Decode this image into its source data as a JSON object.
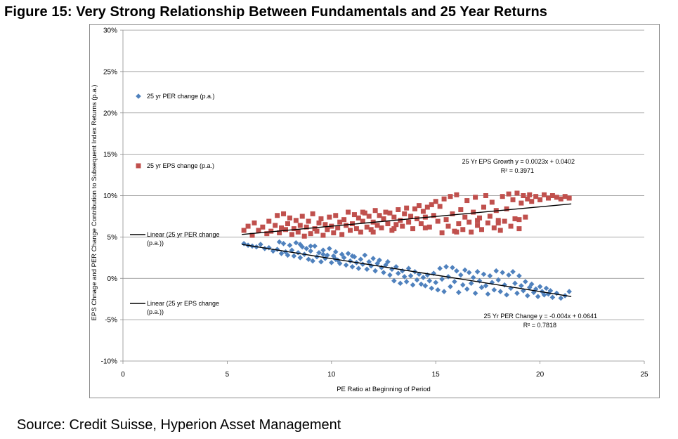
{
  "title": "Figure 15: Very Strong Relationship Between Fundamentals and 25 Year Returns",
  "source": "Source: Credit Suisse, Hyperion Asset Management",
  "chart_data": {
    "type": "scatter",
    "title": "",
    "xlabel": "PE Ratio  at Beginning of Period",
    "ylabel": "EPS Chnage and PER Change Contribution to Subsequent Index Returns (p.a.)",
    "xlim": [
      0,
      25
    ],
    "ylim": [
      -10,
      30
    ],
    "x_ticks": [
      0,
      5,
      10,
      15,
      20,
      25
    ],
    "y_ticks": [
      -10,
      -5,
      0,
      5,
      10,
      15,
      20,
      25,
      30
    ],
    "y_tick_labels": [
      "-10%",
      "-5%",
      "0%",
      "5%",
      "10%",
      "15%",
      "20%",
      "25%",
      "30%"
    ],
    "grid": "horizontal",
    "legend_placement": "left",
    "legend": [
      {
        "label": "25 yr PER change (p.a.)",
        "marker": "diamond",
        "color": "#4f81bd"
      },
      {
        "label": "25 yr EPS change (p.a.)",
        "marker": "square",
        "color": "#c0504d"
      },
      {
        "label": "Linear (25 yr PER change",
        "label2": "(p.a.))",
        "marker": "line",
        "color": "#000000"
      },
      {
        "label": "Linear (25 yr EPS change",
        "label2": "(p.a.))",
        "marker": "line",
        "color": "#000000"
      }
    ],
    "series": [
      {
        "name": "25 yr PER change (p.a.)",
        "marker": "diamond",
        "color": "#4f81bd",
        "points": [
          [
            5.8,
            4.2
          ],
          [
            6.0,
            4.0
          ],
          [
            6.2,
            3.9
          ],
          [
            6.4,
            3.8
          ],
          [
            6.6,
            4.1
          ],
          [
            6.8,
            3.6
          ],
          [
            7.0,
            3.7
          ],
          [
            7.2,
            3.3
          ],
          [
            7.4,
            3.5
          ],
          [
            7.5,
            4.4
          ],
          [
            7.6,
            3.0
          ],
          [
            7.7,
            4.2
          ],
          [
            7.8,
            3.2
          ],
          [
            7.9,
            2.8
          ],
          [
            8.0,
            4.0
          ],
          [
            8.1,
            3.4
          ],
          [
            8.2,
            2.7
          ],
          [
            8.3,
            4.3
          ],
          [
            8.4,
            3.1
          ],
          [
            8.5,
            2.5
          ],
          [
            8.6,
            3.8
          ],
          [
            8.7,
            2.9
          ],
          [
            8.8,
            3.6
          ],
          [
            8.9,
            2.3
          ],
          [
            9.0,
            3.3
          ],
          [
            9.1,
            2.1
          ],
          [
            9.2,
            3.9
          ],
          [
            9.3,
            2.6
          ],
          [
            9.4,
            3.1
          ],
          [
            9.5,
            2.0
          ],
          [
            9.6,
            3.4
          ],
          [
            9.7,
            2.4
          ],
          [
            9.8,
            2.8
          ],
          [
            9.9,
            3.6
          ],
          [
            10.0,
            1.9
          ],
          [
            10.1,
            2.7
          ],
          [
            10.2,
            3.2
          ],
          [
            10.3,
            2.2
          ],
          [
            10.4,
            1.8
          ],
          [
            10.5,
            2.9
          ],
          [
            10.6,
            2.5
          ],
          [
            10.7,
            1.6
          ],
          [
            10.8,
            3.0
          ],
          [
            10.9,
            2.1
          ],
          [
            11.0,
            1.4
          ],
          [
            11.1,
            2.6
          ],
          [
            11.2,
            1.9
          ],
          [
            11.3,
            1.2
          ],
          [
            11.4,
            2.3
          ],
          [
            11.5,
            1.7
          ],
          [
            11.6,
            2.8
          ],
          [
            11.7,
            1.1
          ],
          [
            11.8,
            2.0
          ],
          [
            11.9,
            1.5
          ],
          [
            12.0,
            2.4
          ],
          [
            12.1,
            0.9
          ],
          [
            12.2,
            1.8
          ],
          [
            12.3,
            2.2
          ],
          [
            12.4,
            1.3
          ],
          [
            12.5,
            0.7
          ],
          [
            12.6,
            1.6
          ],
          [
            12.7,
            2.0
          ],
          [
            12.8,
            0.4
          ],
          [
            12.9,
            1.1
          ],
          [
            13.0,
            -0.3
          ],
          [
            13.1,
            1.4
          ],
          [
            13.2,
            0.6
          ],
          [
            13.3,
            -0.6
          ],
          [
            13.4,
            0.9
          ],
          [
            13.5,
            0.2
          ],
          [
            13.6,
            -0.4
          ],
          [
            13.7,
            1.2
          ],
          [
            13.8,
            0.3
          ],
          [
            13.9,
            -0.8
          ],
          [
            14.0,
            0.8
          ],
          [
            14.1,
            -0.2
          ],
          [
            14.2,
            0.5
          ],
          [
            14.3,
            -0.7
          ],
          [
            14.4,
            0.1
          ],
          [
            14.5,
            -0.9
          ],
          [
            14.6,
            0.4
          ],
          [
            14.7,
            -0.3
          ],
          [
            14.8,
            -1.2
          ],
          [
            14.9,
            0.6
          ],
          [
            15.0,
            -0.5
          ],
          [
            15.1,
            -1.4
          ],
          [
            15.2,
            1.2
          ],
          [
            15.3,
            -0.1
          ],
          [
            15.4,
            -1.6
          ],
          [
            15.5,
            1.4
          ],
          [
            15.6,
            0.2
          ],
          [
            15.7,
            -1.0
          ],
          [
            15.8,
            1.3
          ],
          [
            15.9,
            -0.4
          ],
          [
            16.0,
            0.9
          ],
          [
            16.1,
            -1.7
          ],
          [
            16.2,
            0.4
          ],
          [
            16.3,
            -0.8
          ],
          [
            16.4,
            1.0
          ],
          [
            16.5,
            -1.3
          ],
          [
            16.6,
            0.7
          ],
          [
            16.7,
            -0.6
          ],
          [
            16.8,
            0.1
          ],
          [
            16.9,
            -1.8
          ],
          [
            17.0,
            0.8
          ],
          [
            17.1,
            -0.3
          ],
          [
            17.2,
            -1.1
          ],
          [
            17.3,
            0.5
          ],
          [
            17.4,
            -0.9
          ],
          [
            17.5,
            -1.9
          ],
          [
            17.6,
            0.3
          ],
          [
            17.7,
            -0.5
          ],
          [
            17.8,
            -1.4
          ],
          [
            17.9,
            0.9
          ],
          [
            18.0,
            -0.2
          ],
          [
            18.1,
            -1.6
          ],
          [
            18.2,
            0.7
          ],
          [
            18.3,
            -0.8
          ],
          [
            18.4,
            -2.0
          ],
          [
            18.5,
            0.4
          ],
          [
            18.6,
            -1.2
          ],
          [
            18.7,
            0.8
          ],
          [
            18.8,
            -0.6
          ],
          [
            18.9,
            -1.8
          ],
          [
            19.0,
            0.3
          ],
          [
            19.1,
            -0.9
          ],
          [
            19.2,
            -1.5
          ],
          [
            19.3,
            -0.4
          ],
          [
            19.4,
            -2.1
          ],
          [
            19.5,
            -1.1
          ],
          [
            19.6,
            -0.7
          ],
          [
            19.7,
            -1.7
          ],
          [
            19.8,
            -1.3
          ],
          [
            19.9,
            -2.2
          ],
          [
            20.0,
            -1.0
          ],
          [
            20.1,
            -1.6
          ],
          [
            20.2,
            -2.0
          ],
          [
            20.3,
            -1.2
          ],
          [
            20.4,
            -1.9
          ],
          [
            20.5,
            -1.5
          ],
          [
            20.6,
            -2.3
          ],
          [
            20.8,
            -1.8
          ],
          [
            21.0,
            -2.4
          ],
          [
            21.2,
            -2.1
          ],
          [
            21.4,
            -1.6
          ],
          [
            8.5,
            4.1
          ],
          [
            9.0,
            3.9
          ],
          [
            9.6,
            2.9
          ],
          [
            10.2,
            2.3
          ],
          [
            11.0,
            2.7
          ]
        ]
      },
      {
        "name": "25 yr EPS change (p.a.)",
        "marker": "square",
        "color": "#c0504d",
        "points": [
          [
            5.8,
            5.8
          ],
          [
            6.0,
            6.3
          ],
          [
            6.2,
            5.2
          ],
          [
            6.3,
            6.7
          ],
          [
            6.5,
            5.8
          ],
          [
            6.7,
            6.2
          ],
          [
            6.9,
            5.4
          ],
          [
            7.0,
            6.9
          ],
          [
            7.1,
            5.7
          ],
          [
            7.3,
            6.4
          ],
          [
            7.4,
            7.6
          ],
          [
            7.5,
            5.5
          ],
          [
            7.6,
            6.1
          ],
          [
            7.7,
            7.8
          ],
          [
            7.8,
            5.9
          ],
          [
            7.9,
            6.6
          ],
          [
            8.0,
            7.3
          ],
          [
            8.1,
            5.3
          ],
          [
            8.2,
            6.0
          ],
          [
            8.3,
            7.0
          ],
          [
            8.4,
            5.6
          ],
          [
            8.5,
            6.4
          ],
          [
            8.6,
            7.5
          ],
          [
            8.7,
            5.1
          ],
          [
            8.8,
            6.2
          ],
          [
            8.9,
            6.9
          ],
          [
            9.0,
            5.4
          ],
          [
            9.1,
            7.8
          ],
          [
            9.2,
            6.0
          ],
          [
            9.3,
            5.7
          ],
          [
            9.4,
            6.7
          ],
          [
            9.5,
            7.2
          ],
          [
            9.6,
            5.2
          ],
          [
            9.7,
            6.5
          ],
          [
            9.8,
            5.9
          ],
          [
            9.9,
            7.4
          ],
          [
            10.0,
            6.3
          ],
          [
            10.1,
            5.5
          ],
          [
            10.2,
            7.6
          ],
          [
            10.3,
            6.1
          ],
          [
            10.4,
            6.8
          ],
          [
            10.5,
            5.3
          ],
          [
            10.6,
            7.1
          ],
          [
            10.7,
            6.4
          ],
          [
            10.8,
            8.0
          ],
          [
            10.9,
            5.8
          ],
          [
            11.0,
            6.6
          ],
          [
            11.1,
            7.7
          ],
          [
            11.2,
            6.0
          ],
          [
            11.3,
            7.3
          ],
          [
            11.4,
            5.6
          ],
          [
            11.5,
            6.9
          ],
          [
            11.6,
            7.9
          ],
          [
            11.7,
            6.2
          ],
          [
            11.8,
            7.5
          ],
          [
            11.9,
            5.9
          ],
          [
            12.0,
            6.8
          ],
          [
            12.1,
            8.2
          ],
          [
            12.2,
            6.4
          ],
          [
            12.3,
            7.6
          ],
          [
            12.4,
            6.1
          ],
          [
            12.5,
            7.2
          ],
          [
            12.6,
            8.0
          ],
          [
            12.7,
            6.6
          ],
          [
            12.8,
            7.9
          ],
          [
            12.9,
            5.8
          ],
          [
            13.0,
            7.4
          ],
          [
            13.1,
            6.5
          ],
          [
            13.2,
            8.3
          ],
          [
            13.3,
            7.0
          ],
          [
            13.4,
            6.3
          ],
          [
            13.5,
            7.8
          ],
          [
            13.6,
            8.5
          ],
          [
            13.7,
            6.8
          ],
          [
            13.8,
            7.5
          ],
          [
            13.9,
            6.0
          ],
          [
            14.0,
            8.4
          ],
          [
            14.1,
            7.2
          ],
          [
            14.2,
            8.8
          ],
          [
            14.3,
            6.6
          ],
          [
            14.4,
            8.1
          ],
          [
            14.5,
            7.4
          ],
          [
            14.6,
            8.6
          ],
          [
            14.7,
            6.2
          ],
          [
            14.8,
            8.9
          ],
          [
            14.9,
            7.6
          ],
          [
            15.0,
            9.3
          ],
          [
            15.1,
            6.9
          ],
          [
            15.2,
            8.7
          ],
          [
            15.3,
            5.5
          ],
          [
            15.4,
            9.6
          ],
          [
            15.5,
            7.1
          ],
          [
            15.6,
            6.3
          ],
          [
            15.7,
            9.9
          ],
          [
            15.8,
            7.8
          ],
          [
            15.9,
            5.7
          ],
          [
            16.0,
            10.1
          ],
          [
            16.1,
            6.6
          ],
          [
            16.2,
            8.3
          ],
          [
            16.3,
            5.9
          ],
          [
            16.4,
            7.4
          ],
          [
            16.5,
            9.4
          ],
          [
            16.6,
            6.8
          ],
          [
            16.7,
            5.6
          ],
          [
            16.8,
            8.0
          ],
          [
            16.9,
            9.8
          ],
          [
            17.0,
            6.4
          ],
          [
            17.1,
            7.3
          ],
          [
            17.2,
            5.9
          ],
          [
            17.3,
            8.6
          ],
          [
            17.4,
            10.0
          ],
          [
            17.5,
            6.7
          ],
          [
            17.6,
            7.5
          ],
          [
            17.7,
            9.2
          ],
          [
            17.8,
            6.1
          ],
          [
            17.9,
            8.2
          ],
          [
            18.0,
            7.0
          ],
          [
            18.1,
            5.8
          ],
          [
            18.2,
            9.9
          ],
          [
            18.3,
            6.9
          ],
          [
            18.4,
            8.4
          ],
          [
            18.5,
            10.2
          ],
          [
            18.6,
            6.3
          ],
          [
            18.7,
            9.5
          ],
          [
            18.8,
            7.2
          ],
          [
            18.9,
            10.3
          ],
          [
            19.0,
            6.0
          ],
          [
            19.1,
            9.1
          ],
          [
            19.2,
            10.0
          ],
          [
            19.3,
            7.4
          ],
          [
            19.4,
            9.6
          ],
          [
            19.5,
            10.1
          ],
          [
            19.6,
            9.3
          ],
          [
            19.8,
            9.9
          ],
          [
            20.0,
            9.5
          ],
          [
            20.2,
            10.1
          ],
          [
            20.4,
            9.7
          ],
          [
            20.6,
            10.0
          ],
          [
            20.8,
            9.8
          ],
          [
            21.0,
            9.6
          ],
          [
            21.2,
            9.9
          ],
          [
            21.4,
            9.7
          ],
          [
            12.0,
            5.6
          ],
          [
            13.0,
            6.0
          ],
          [
            14.5,
            6.1
          ],
          [
            16.0,
            5.6
          ],
          [
            17.0,
            7.0
          ],
          [
            18.0,
            6.7
          ],
          [
            19.0,
            7.1
          ],
          [
            11.5,
            8.0
          ]
        ]
      }
    ],
    "trendlines": [
      {
        "series": "25 yr EPS change (p.a.)",
        "label": "25 Yr EPS Growth y = 0.0023x + 0.0402",
        "r2": "R² = 0.3971",
        "x": [
          5.7,
          21.5
        ],
        "y": [
          5.3,
          9.0
        ]
      },
      {
        "series": "25 yr PER change (p.a.)",
        "label": "25 Yr PER Change y = -0.004x + 0.0641",
        "r2": "R² = 0.7818",
        "x": [
          5.7,
          21.5
        ],
        "y": [
          4.1,
          -2.2
        ]
      }
    ]
  }
}
